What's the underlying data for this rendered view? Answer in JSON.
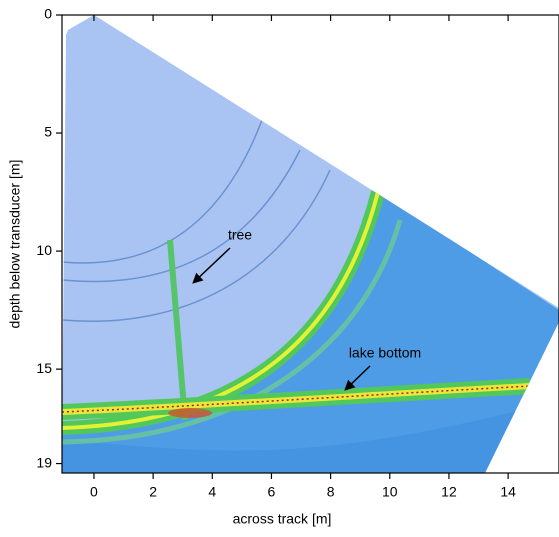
{
  "chart_data": {
    "type": "image",
    "x_label": "across track [m]",
    "y_label": "depth below transducer [m]",
    "xlim": [
      -1.08,
      15.72
    ],
    "xticks": [
      0,
      2,
      4,
      6,
      8,
      10,
      12,
      14
    ],
    "ylim": [
      0,
      19.4
    ],
    "yticks": [
      0,
      5,
      10,
      15,
      19
    ],
    "y_inverted": true,
    "annotations": [
      "tree",
      "lake bottom"
    ]
  }
}
